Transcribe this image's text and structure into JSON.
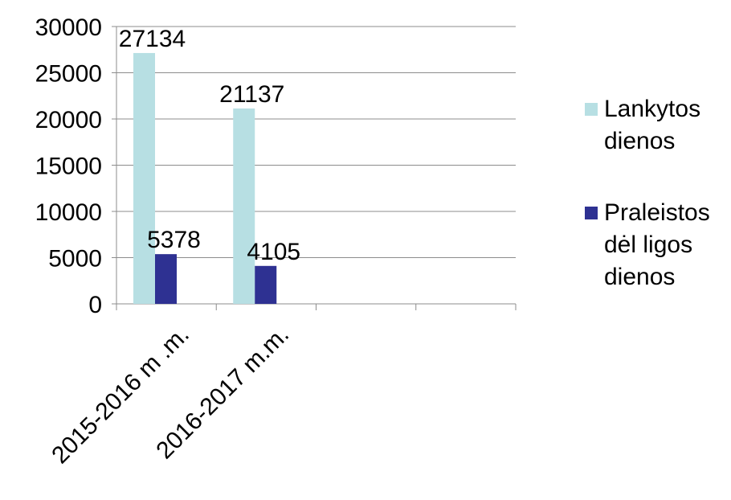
{
  "chart_data": {
    "type": "bar",
    "categories": [
      "2015-2016 m .m.",
      "2016-2017 m.m."
    ],
    "slots": 4,
    "series": [
      {
        "name": "Lankytos dienos",
        "values": [
          27134,
          21137
        ],
        "color": "#b7dfe3"
      },
      {
        "name": "Praleistos dėl ligos dienos",
        "values": [
          5378,
          4105
        ],
        "color": "#2e3192"
      }
    ],
    "data_labels": [
      [
        "27134",
        "21137"
      ],
      [
        "5378",
        "4105"
      ]
    ],
    "ylim": [
      0,
      30000
    ],
    "yticks": [
      "0",
      "5000",
      "10000",
      "15000",
      "20000",
      "25000",
      "30000"
    ],
    "grid": true,
    "legend": {
      "position": "right",
      "entries": [
        {
          "lines": [
            "Lankytos",
            "dienos"
          ],
          "color": "#b7dfe3"
        },
        {
          "lines": [
            "Praleistos",
            "dėl ligos",
            "dienos"
          ],
          "color": "#2e3192"
        }
      ]
    }
  }
}
